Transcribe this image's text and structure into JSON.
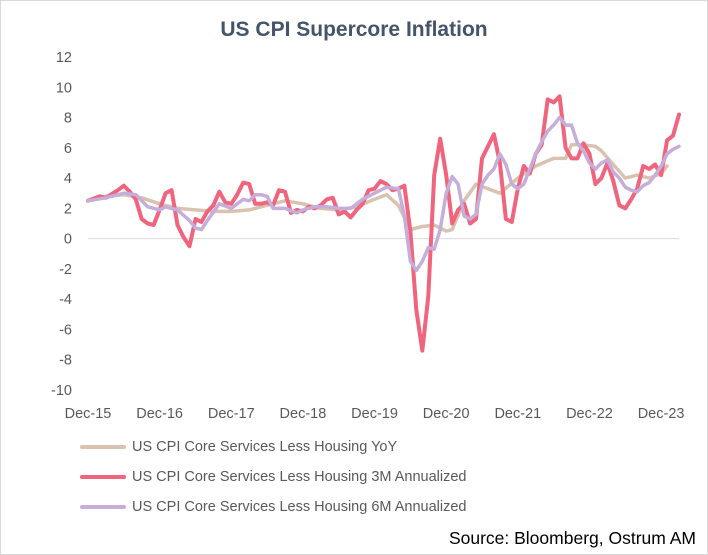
{
  "colors": {
    "yoy": "#d9c3b0",
    "m3": "#f0657d",
    "m6": "#c6aedb",
    "axis": "#d9d9d9",
    "title": "#44546a"
  },
  "chart_data": {
    "type": "line",
    "title": "US CPI Supercore Inflation",
    "source": "Source: Bloomberg, Ostrum AM",
    "xlabel": "",
    "ylabel": "",
    "ylim": [
      -10,
      12
    ],
    "y_ticks": [
      "12",
      "10",
      "8",
      "6",
      "4",
      "2",
      "0",
      "-2",
      "-4",
      "-6",
      "-8",
      "-10"
    ],
    "y_tick_values": [
      12,
      10,
      8,
      6,
      4,
      2,
      0,
      -2,
      -4,
      -6,
      -8,
      -10
    ],
    "x_start": "2015-12",
    "x_end": "2024-01",
    "x_ticks": [
      "Dec-15",
      "Dec-16",
      "Dec-17",
      "Dec-18",
      "Dec-19",
      "Dec-20",
      "Dec-21",
      "Dec-22",
      "Dec-23"
    ],
    "x_tick_months": [
      0,
      12,
      24,
      36,
      48,
      60,
      72,
      84,
      96
    ],
    "grid": false,
    "legend_position": "bottom-left",
    "series": [
      {
        "name": "US CPI Core Services Less Housing YoY",
        "color_key": "yoy",
        "values": [
          [
            0,
            2.5
          ],
          [
            3,
            2.8
          ],
          [
            6,
            2.9
          ],
          [
            9,
            2.7
          ],
          [
            12,
            2.3
          ],
          [
            15,
            2.0
          ],
          [
            18,
            1.9
          ],
          [
            21,
            1.8
          ],
          [
            24,
            1.8
          ],
          [
            27,
            1.9
          ],
          [
            30,
            2.2
          ],
          [
            33,
            2.5
          ],
          [
            36,
            2.3
          ],
          [
            39,
            2.0
          ],
          [
            42,
            1.9
          ],
          [
            45,
            2.1
          ],
          [
            48,
            2.6
          ],
          [
            50,
            2.9
          ],
          [
            52,
            2.2
          ],
          [
            54,
            0.6
          ],
          [
            56,
            0.8
          ],
          [
            58,
            0.9
          ],
          [
            60,
            0.5
          ],
          [
            61,
            0.6
          ],
          [
            63,
            2.5
          ],
          [
            65,
            3.6
          ],
          [
            67,
            3.3
          ],
          [
            69,
            3.0
          ],
          [
            72,
            4.0
          ],
          [
            75,
            4.8
          ],
          [
            78,
            5.3
          ],
          [
            80,
            5.3
          ],
          [
            81,
            6.2
          ],
          [
            83,
            6.2
          ],
          [
            85,
            6.1
          ],
          [
            86,
            5.8
          ],
          [
            88,
            4.9
          ],
          [
            90,
            4.0
          ],
          [
            92,
            4.2
          ],
          [
            94,
            4.0
          ],
          [
            96,
            4.3
          ],
          [
            97,
            4.8
          ]
        ]
      },
      {
        "name": "US CPI Core Services Less Housing 3M Annualized",
        "color_key": "m3",
        "values": [
          [
            0,
            2.5
          ],
          [
            2,
            2.8
          ],
          [
            3,
            2.7
          ],
          [
            5,
            3.2
          ],
          [
            6,
            3.5
          ],
          [
            7,
            3.1
          ],
          [
            8,
            2.6
          ],
          [
            9,
            1.3
          ],
          [
            10,
            1.0
          ],
          [
            11,
            0.9
          ],
          [
            12,
            1.9
          ],
          [
            13,
            3.0
          ],
          [
            14,
            3.2
          ],
          [
            15,
            0.9
          ],
          [
            16,
            0.1
          ],
          [
            17,
            -0.5
          ],
          [
            18,
            1.3
          ],
          [
            19,
            1.1
          ],
          [
            20,
            1.8
          ],
          [
            21,
            2.2
          ],
          [
            22,
            3.1
          ],
          [
            23,
            2.4
          ],
          [
            24,
            2.3
          ],
          [
            25,
            2.9
          ],
          [
            26,
            3.7
          ],
          [
            27,
            3.6
          ],
          [
            28,
            2.3
          ],
          [
            29,
            2.3
          ],
          [
            30,
            2.4
          ],
          [
            31,
            2.2
          ],
          [
            32,
            3.2
          ],
          [
            33,
            3.1
          ],
          [
            34,
            1.7
          ],
          [
            35,
            1.9
          ],
          [
            36,
            1.8
          ],
          [
            37,
            2.1
          ],
          [
            38,
            2.0
          ],
          [
            39,
            2.2
          ],
          [
            40,
            2.6
          ],
          [
            41,
            2.7
          ],
          [
            42,
            1.6
          ],
          [
            43,
            1.8
          ],
          [
            44,
            1.4
          ],
          [
            45,
            1.9
          ],
          [
            46,
            2.3
          ],
          [
            47,
            3.2
          ],
          [
            48,
            3.3
          ],
          [
            49,
            3.8
          ],
          [
            50,
            3.6
          ],
          [
            51,
            3.2
          ],
          [
            52,
            3.3
          ],
          [
            53,
            3.5
          ],
          [
            54,
            0.5
          ],
          [
            55,
            -4.7
          ],
          [
            56,
            -7.4
          ],
          [
            57,
            -3.8
          ],
          [
            58,
            4.2
          ],
          [
            59,
            6.6
          ],
          [
            60,
            4.2
          ],
          [
            61,
            1.0
          ],
          [
            62,
            1.9
          ],
          [
            63,
            2.3
          ],
          [
            64,
            1.0
          ],
          [
            65,
            1.3
          ],
          [
            66,
            5.3
          ],
          [
            67,
            6.1
          ],
          [
            68,
            6.9
          ],
          [
            69,
            5.0
          ],
          [
            70,
            1.3
          ],
          [
            71,
            1.1
          ],
          [
            72,
            3.3
          ],
          [
            73,
            4.8
          ],
          [
            74,
            4.3
          ],
          [
            75,
            5.6
          ],
          [
            76,
            6.2
          ],
          [
            77,
            9.2
          ],
          [
            78,
            9.0
          ],
          [
            79,
            9.4
          ],
          [
            80,
            6.0
          ],
          [
            81,
            5.3
          ],
          [
            82,
            5.3
          ],
          [
            83,
            6.3
          ],
          [
            84,
            5.6
          ],
          [
            85,
            3.6
          ],
          [
            86,
            4.0
          ],
          [
            87,
            5.0
          ],
          [
            88,
            3.8
          ],
          [
            89,
            2.2
          ],
          [
            90,
            2.0
          ],
          [
            91,
            2.6
          ],
          [
            92,
            3.3
          ],
          [
            93,
            4.8
          ],
          [
            94,
            4.6
          ],
          [
            95,
            4.9
          ],
          [
            96,
            4.2
          ],
          [
            97,
            6.5
          ],
          [
            98,
            6.8
          ],
          [
            99,
            8.2
          ]
        ]
      },
      {
        "name": "US CPI Core Services Less Housing 6M Annualized",
        "color_key": "m6",
        "values": [
          [
            0,
            2.5
          ],
          [
            3,
            2.7
          ],
          [
            6,
            3.0
          ],
          [
            8,
            2.9
          ],
          [
            10,
            2.1
          ],
          [
            12,
            1.9
          ],
          [
            13,
            2.1
          ],
          [
            15,
            1.9
          ],
          [
            17,
            1.2
          ],
          [
            18,
            0.7
          ],
          [
            19,
            0.6
          ],
          [
            20,
            1.2
          ],
          [
            22,
            2.3
          ],
          [
            24,
            2.0
          ],
          [
            26,
            2.6
          ],
          [
            27,
            2.5
          ],
          [
            28,
            2.9
          ],
          [
            29,
            2.9
          ],
          [
            30,
            2.8
          ],
          [
            31,
            2.0
          ],
          [
            33,
            2.0
          ],
          [
            35,
            1.7
          ],
          [
            36,
            1.9
          ],
          [
            38,
            2.1
          ],
          [
            40,
            2.1
          ],
          [
            42,
            2.0
          ],
          [
            44,
            2.0
          ],
          [
            46,
            2.6
          ],
          [
            48,
            3.0
          ],
          [
            50,
            3.4
          ],
          [
            52,
            3.3
          ],
          [
            53,
            1.5
          ],
          [
            54,
            -1.5
          ],
          [
            55,
            -2.1
          ],
          [
            56,
            -1.5
          ],
          [
            57,
            -0.6
          ],
          [
            58,
            -0.7
          ],
          [
            59,
            0.6
          ],
          [
            60,
            3.0
          ],
          [
            61,
            4.1
          ],
          [
            62,
            3.6
          ],
          [
            63,
            1.5
          ],
          [
            64,
            1.3
          ],
          [
            65,
            1.6
          ],
          [
            66,
            3.6
          ],
          [
            67,
            4.2
          ],
          [
            68,
            4.6
          ],
          [
            69,
            5.6
          ],
          [
            70,
            4.9
          ],
          [
            71,
            3.6
          ],
          [
            72,
            3.3
          ],
          [
            73,
            3.6
          ],
          [
            74,
            4.6
          ],
          [
            75,
            5.6
          ],
          [
            76,
            6.4
          ],
          [
            77,
            7.1
          ],
          [
            78,
            7.5
          ],
          [
            79,
            8.0
          ],
          [
            80,
            7.5
          ],
          [
            81,
            7.5
          ],
          [
            82,
            6.3
          ],
          [
            83,
            5.8
          ],
          [
            84,
            5.0
          ],
          [
            85,
            4.6
          ],
          [
            86,
            5.0
          ],
          [
            87,
            5.2
          ],
          [
            88,
            4.4
          ],
          [
            89,
            4.0
          ],
          [
            90,
            3.4
          ],
          [
            91,
            3.2
          ],
          [
            92,
            3.1
          ],
          [
            93,
            3.5
          ],
          [
            94,
            3.7
          ],
          [
            95,
            4.2
          ],
          [
            96,
            4.8
          ],
          [
            97,
            5.6
          ],
          [
            98,
            5.9
          ],
          [
            99,
            6.1
          ]
        ]
      }
    ]
  }
}
